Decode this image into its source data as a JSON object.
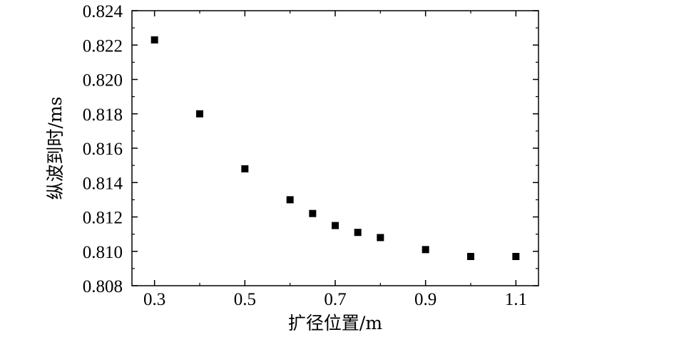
{
  "chart_data": {
    "type": "scatter",
    "title": "",
    "xlabel": "扩径位置/m",
    "ylabel": "纵波到时/ms",
    "xlim": [
      0.25,
      1.15
    ],
    "ylim": [
      0.808,
      0.824
    ],
    "xticks": [
      0.3,
      0.5,
      0.7,
      0.9,
      1.1
    ],
    "xtick_labels": [
      "0.3",
      "0.5",
      "0.7",
      "0.9",
      "1.1"
    ],
    "yticks": [
      0.808,
      0.81,
      0.812,
      0.814,
      0.816,
      0.818,
      0.82,
      0.822,
      0.824
    ],
    "ytick_labels": [
      "0.808",
      "0.810",
      "0.812",
      "0.814",
      "0.816",
      "0.818",
      "0.820",
      "0.822",
      "0.824"
    ],
    "grid": false,
    "legend": "none",
    "marker": "square",
    "marker_color": "#000000",
    "points": [
      {
        "x": 0.3,
        "y": 0.8223
      },
      {
        "x": 0.4,
        "y": 0.818
      },
      {
        "x": 0.5,
        "y": 0.8148
      },
      {
        "x": 0.6,
        "y": 0.813
      },
      {
        "x": 0.65,
        "y": 0.8122
      },
      {
        "x": 0.7,
        "y": 0.8115
      },
      {
        "x": 0.75,
        "y": 0.8111
      },
      {
        "x": 0.8,
        "y": 0.8108
      },
      {
        "x": 0.9,
        "y": 0.8101
      },
      {
        "x": 1.0,
        "y": 0.8097
      },
      {
        "x": 1.1,
        "y": 0.8097
      }
    ]
  }
}
